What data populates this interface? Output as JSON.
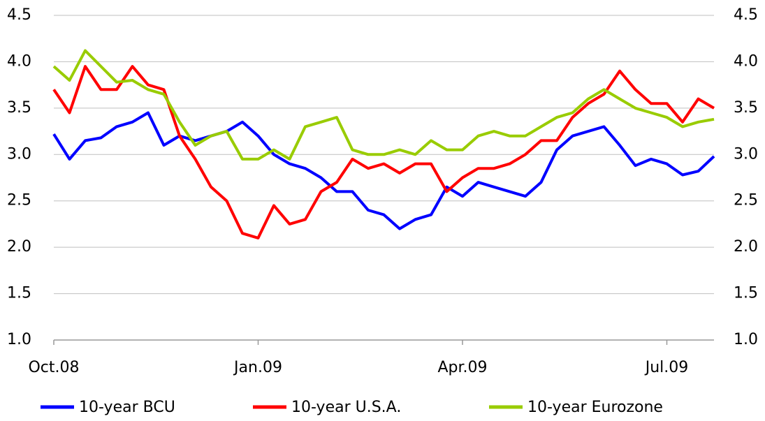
{
  "chart_data": {
    "type": "line",
    "categories": [
      "Oct.08",
      null,
      null,
      null,
      null,
      null,
      null,
      null,
      null,
      null,
      null,
      null,
      null,
      "Jan.09",
      null,
      null,
      null,
      null,
      null,
      null,
      null,
      null,
      null,
      null,
      null,
      null,
      "Apr.09",
      null,
      null,
      null,
      null,
      null,
      null,
      null,
      null,
      null,
      null,
      null,
      null,
      "Jul.09",
      null,
      null,
      null
    ],
    "series": [
      {
        "name": "10-year BCU",
        "color": "#0000ff",
        "values": [
          3.22,
          2.95,
          3.15,
          3.18,
          3.3,
          3.35,
          3.45,
          3.1,
          3.2,
          3.15,
          3.2,
          3.25,
          3.35,
          3.2,
          3.0,
          2.9,
          2.85,
          2.75,
          2.6,
          2.6,
          2.4,
          2.35,
          2.2,
          2.3,
          2.35,
          2.65,
          2.55,
          2.7,
          2.65,
          2.6,
          2.55,
          2.7,
          3.05,
          3.2,
          3.25,
          3.3,
          3.1,
          2.88,
          2.95,
          2.9,
          2.78,
          2.82,
          2.98
        ]
      },
      {
        "name": "10-year U.S.A.",
        "color": "#ff0000",
        "values": [
          3.7,
          3.45,
          3.95,
          3.7,
          3.7,
          3.95,
          3.75,
          3.7,
          3.2,
          2.95,
          2.65,
          2.5,
          2.15,
          2.1,
          2.45,
          2.25,
          2.3,
          2.6,
          2.7,
          2.95,
          2.85,
          2.9,
          2.8,
          2.9,
          2.9,
          2.6,
          2.75,
          2.85,
          2.85,
          2.9,
          3.0,
          3.15,
          3.15,
          3.4,
          3.55,
          3.65,
          3.9,
          3.7,
          3.55,
          3.55,
          3.35,
          3.6,
          3.5
        ]
      },
      {
        "name": "10-year Eurozone",
        "color": "#99cc00",
        "values": [
          3.95,
          3.8,
          4.12,
          3.95,
          3.78,
          3.8,
          3.7,
          3.65,
          3.35,
          3.1,
          3.2,
          3.25,
          2.95,
          2.95,
          3.05,
          2.95,
          3.3,
          3.35,
          3.4,
          3.05,
          3.0,
          3.0,
          3.05,
          3.0,
          3.15,
          3.05,
          3.05,
          3.2,
          3.25,
          3.2,
          3.2,
          3.3,
          3.4,
          3.45,
          3.6,
          3.7,
          3.6,
          3.5,
          3.45,
          3.4,
          3.3,
          3.35,
          3.38
        ]
      }
    ],
    "ylim": [
      1,
      4.5
    ],
    "yticks": [
      {
        "value": 1,
        "label": "1.0"
      },
      1.5,
      {
        "value": 2,
        "label": "2.0"
      },
      2.5,
      {
        "value": 3,
        "label": "3.0"
      },
      3.5,
      {
        "value": 4,
        "label": "4.0"
      },
      4.5
    ],
    "y2lim": [
      1,
      4.5
    ],
    "y2ticks": [
      {
        "value": 1,
        "label": "1.0"
      },
      1.5,
      {
        "value": 2,
        "label": "2.0"
      },
      2.5,
      {
        "value": 3,
        "label": "3.0"
      },
      3.5,
      {
        "value": 4,
        "label": "4.0"
      },
      4.5
    ],
    "grid": true,
    "legend": "bottom"
  }
}
